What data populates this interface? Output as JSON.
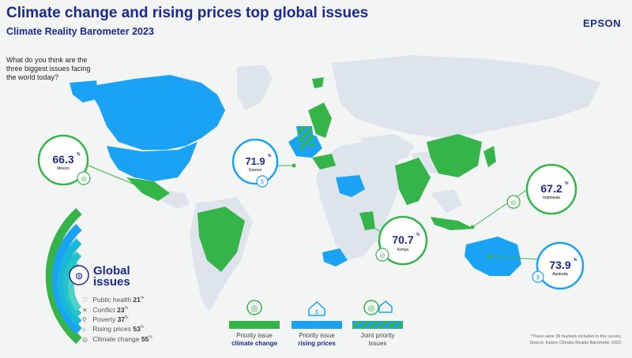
{
  "header": {
    "title": "Climate change and rising prices top global issues",
    "subtitle": "Climate Reality Barometer 2023",
    "brand": "EPSON"
  },
  "question": "What do you think are the three biggest issues facing the world today?",
  "colors": {
    "climate_change": "#35b44a",
    "rising_prices": "#1aa3f5",
    "other_land": "#dde4ec",
    "title_blue": "#1b2a8f"
  },
  "callouts": [
    {
      "country": "Mexico",
      "value": "66.3",
      "unit": "%",
      "issue": "climate change"
    },
    {
      "country": "Greece",
      "value": "71.9",
      "unit": "%",
      "issue": "rising prices"
    },
    {
      "country": "Indonesia",
      "value": "67.2",
      "unit": "%",
      "issue": "climate change"
    },
    {
      "country": "Kenya",
      "value": "70.7",
      "unit": "%",
      "issue": "climate change"
    },
    {
      "country": "Australia",
      "value": "73.9",
      "unit": "%",
      "issue": "rising prices"
    }
  ],
  "global_issues": {
    "title": "Global issues",
    "items": [
      {
        "label": "Public health",
        "value": "21",
        "unit": "%",
        "icon": "heart-icon"
      },
      {
        "label": "Conflict",
        "value": "23",
        "unit": "%",
        "icon": "conflict-icon"
      },
      {
        "label": "Poverty",
        "value": "37",
        "unit": "%",
        "icon": "poverty-icon"
      },
      {
        "label": "Rising prices",
        "value": "53",
        "unit": "%",
        "icon": "house-price-icon"
      },
      {
        "label": "Climate change",
        "value": "55",
        "unit": "%",
        "icon": "globe-icon"
      }
    ]
  },
  "legend": [
    {
      "line1": "Priority issue",
      "line2": "climate change",
      "swatch": "green"
    },
    {
      "line1": "Priority issue",
      "line2": "rising prices",
      "swatch": "blue"
    },
    {
      "line1": "Joint priority",
      "line2": "issues",
      "swatch": "striped"
    }
  ],
  "footnote": {
    "line1": "*There were 39 markets included in this survey",
    "line2": "Source: Epson Climate Reality Barometer 2023"
  }
}
